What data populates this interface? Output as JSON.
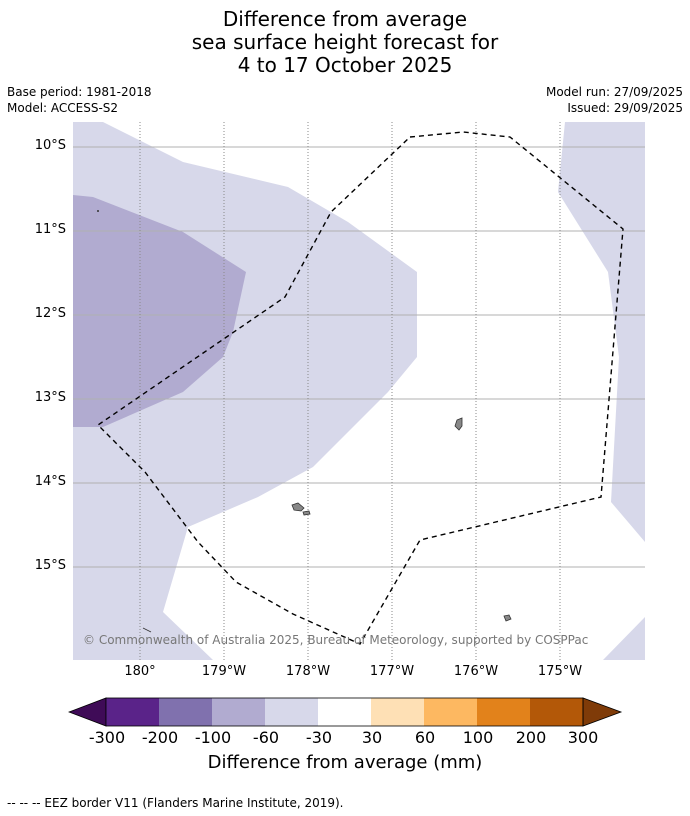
{
  "title_lines": [
    "Difference from average",
    "sea surface height forecast for",
    "4 to 17 October 2025"
  ],
  "meta_left": [
    "Base period: 1981-2018",
    "Model: ACCESS-S2"
  ],
  "meta_right": [
    "Model run: 27/09/2025",
    "Issued: 29/09/2025"
  ],
  "map": {
    "lat_labels": [
      "10°S",
      "11°S",
      "12°S",
      "13°S",
      "14°S",
      "15°S"
    ],
    "lon_labels": [
      "180°",
      "179°W",
      "178°W",
      "177°W",
      "176°W",
      "175°W"
    ],
    "copyright": "© Commonwealth of Australia 2025, Bureau of Meteorology, supported by COSPPac"
  },
  "legend": {
    "title": "Difference from average (mm)",
    "ticks": [
      "-300",
      "-200",
      "-100",
      "-60",
      "-30",
      "30",
      "60",
      "100",
      "200",
      "300"
    ],
    "colors": [
      "#3f0b57",
      "#5a2389",
      "#8071ae",
      "#b1abd0",
      "#d7d8ea",
      "#ffffff",
      "#fee0b5",
      "#fdb861",
      "#e2821b",
      "#b35808",
      "#7f3b08"
    ]
  },
  "footnote": "--  --  -- EEZ border V11 (Flanders Marine Institute, 2019)."
}
